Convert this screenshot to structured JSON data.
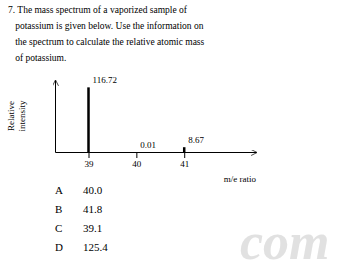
{
  "chart_data": {
    "type": "bar",
    "title": [
      "7. The mass spectrum of a vaporized sample of",
      "   potassium is given below. Use the information on",
      "   the spectrum to calculate the relative atomic mass",
      "   of potassium."
    ],
    "x": [
      39,
      40,
      41
    ],
    "values": [
      116.72,
      0.01,
      8.67
    ],
    "color": "#000000",
    "data_labels": true,
    "xlim": [
      38.3,
      42.5
    ],
    "xticks": [
      39,
      40,
      41
    ],
    "ylim": [
      0,
      130
    ],
    "tick_labels": "x",
    "xlabel": "m/e ratio",
    "ylabel": [
      "Relative",
      "intensity"
    ],
    "choices": [
      [
        "A",
        "40.0"
      ],
      [
        "B",
        "41.8"
      ],
      [
        "C",
        "39.1"
      ],
      [
        "D",
        "125.4"
      ]
    ],
    "watermark": "com"
  }
}
